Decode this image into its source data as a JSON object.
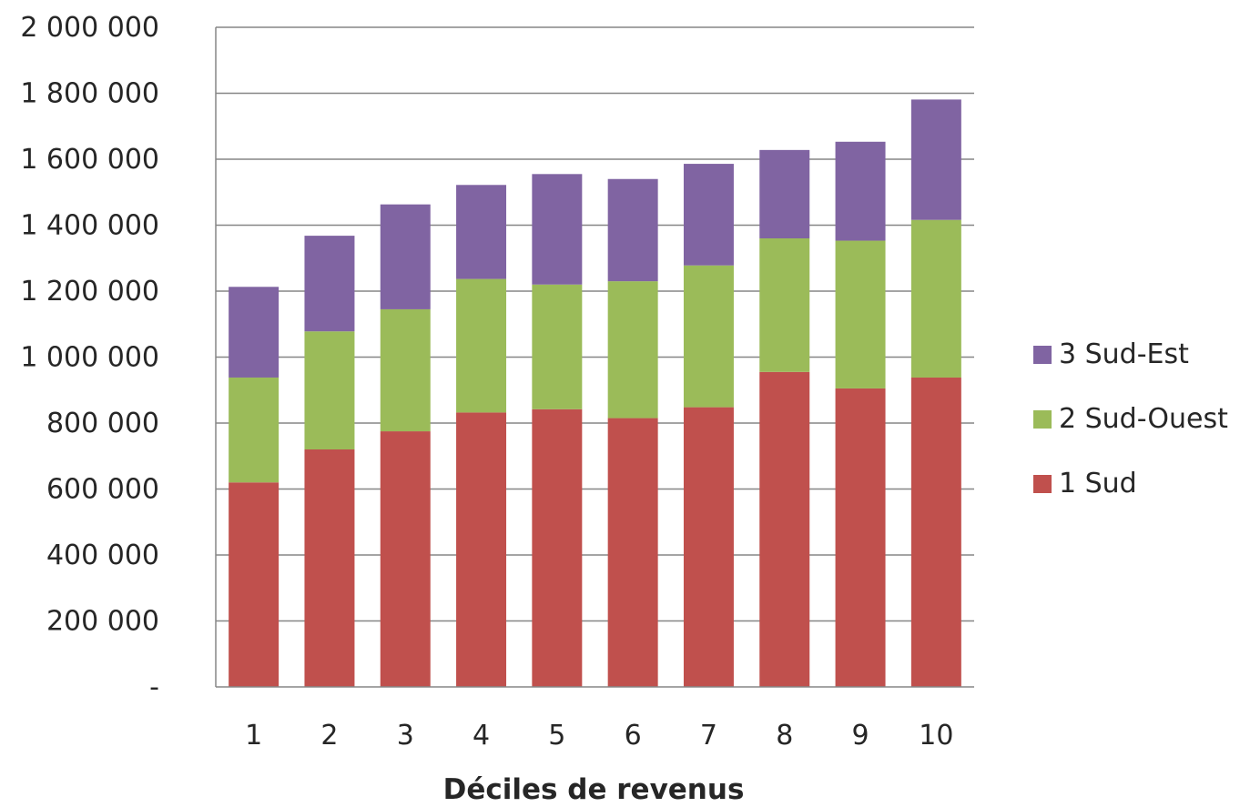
{
  "chart_data": {
    "type": "bar",
    "stacked": true,
    "title": "",
    "xlabel": "Déciles de revenus",
    "ylabel": "",
    "ylim": [
      0,
      2000000
    ],
    "y_ticks": [
      {
        "value": 0,
        "label": "-"
      },
      {
        "value": 200000,
        "label": "200 000"
      },
      {
        "value": 400000,
        "label": "400 000"
      },
      {
        "value": 600000,
        "label": "600 000"
      },
      {
        "value": 800000,
        "label": "800 000"
      },
      {
        "value": 1000000,
        "label": "1 000 000"
      },
      {
        "value": 1200000,
        "label": "1 200 000"
      },
      {
        "value": 1400000,
        "label": "1 400 000"
      },
      {
        "value": 1600000,
        "label": "1 600 000"
      },
      {
        "value": 1800000,
        "label": "1 800 000"
      },
      {
        "value": 2000000,
        "label": "2 000 000"
      }
    ],
    "categories": [
      "1",
      "2",
      "3",
      "4",
      "5",
      "6",
      "7",
      "8",
      "9",
      "10"
    ],
    "grid": true,
    "legend_position": "right",
    "series": [
      {
        "name": "1 Sud",
        "color": "#c0504d",
        "values": [
          620000,
          720000,
          775000,
          832000,
          842000,
          815000,
          848000,
          955000,
          905000,
          938000
        ]
      },
      {
        "name": "2 Sud-Ouest",
        "color": "#9bbb59",
        "values": [
          318000,
          358000,
          370000,
          405000,
          378000,
          415000,
          430000,
          405000,
          448000,
          478000
        ]
      },
      {
        "name": "3 Sud-Est",
        "color": "#8064a2",
        "values": [
          275000,
          290000,
          318000,
          285000,
          335000,
          310000,
          308000,
          268000,
          300000,
          365000
        ]
      }
    ],
    "legend_order": [
      "3 Sud-Est",
      "2 Sud-Ouest",
      "1 Sud"
    ],
    "colors": {
      "grid": "#868686",
      "axis": "#868686",
      "text": "#262626"
    }
  }
}
